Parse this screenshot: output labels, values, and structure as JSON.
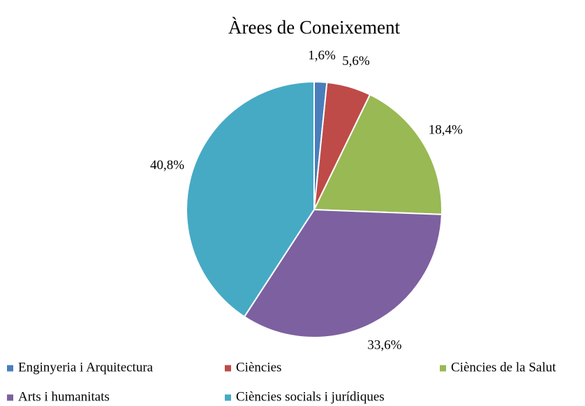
{
  "chart_data": {
    "type": "pie",
    "title": "Àrees de Coneixement",
    "categories": [
      "Enginyeria i Arquitectura",
      "Ciències",
      "Ciències de la Salut",
      "Arts i humanitats",
      "Ciències socials i jurídiques"
    ],
    "values": [
      1.6,
      5.6,
      18.4,
      33.6,
      40.8
    ],
    "value_labels": [
      "1,6%",
      "5,6%",
      "18,4%",
      "33,6%",
      "40,8%"
    ],
    "colors": [
      "#4a7ebb",
      "#be4b48",
      "#98b954",
      "#7d60a0",
      "#46aac5"
    ],
    "legend": "bottom"
  }
}
